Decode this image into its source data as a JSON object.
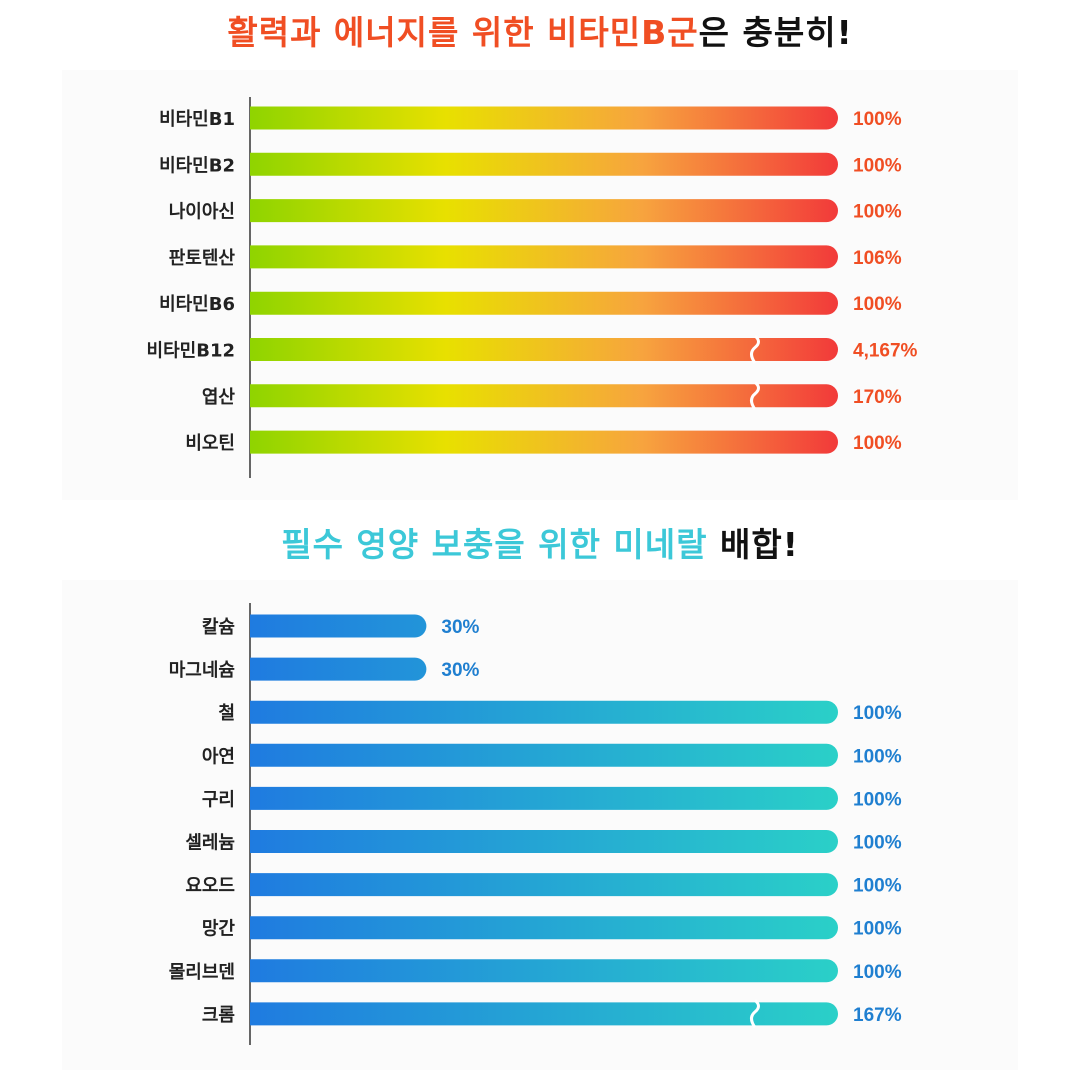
{
  "headline1": {
    "accent": "활력과 에너지를 위한 비타민B군",
    "rest": "은 충분히!",
    "accent_color": "#f04e23",
    "rest_color": "#111111"
  },
  "headline2": {
    "accent": "필수 영양 보충을 위한 미네랄",
    "rest": " 배합!",
    "accent_color": "#3cc8d8",
    "rest_color": "#111111"
  },
  "chart_data": [
    {
      "type": "bar",
      "orientation": "horizontal",
      "categories": [
        "비타민B1",
        "비타민B2",
        "나이아신",
        "판토텐산",
        "비타민B6",
        "비타민B12",
        "엽산",
        "비오틴"
      ],
      "values": [
        100,
        100,
        100,
        106,
        100,
        4167,
        170,
        100
      ],
      "value_labels": [
        "100%",
        "100%",
        "100%",
        "106%",
        "100%",
        "4,167%",
        "170%",
        "100%"
      ],
      "broken_axis": [
        false,
        false,
        false,
        false,
        false,
        true,
        true,
        false
      ],
      "gradient": [
        "#8fd400",
        "#e8e000",
        "#f7a43e",
        "#f23a3a"
      ],
      "value_color": "#f04e23",
      "grid": false
    },
    {
      "type": "bar",
      "orientation": "horizontal",
      "categories": [
        "칼슘",
        "마그네슘",
        "철",
        "아연",
        "구리",
        "셀레늄",
        "요오드",
        "망간",
        "몰리브덴",
        "크롬"
      ],
      "values": [
        30,
        30,
        100,
        100,
        100,
        100,
        100,
        100,
        100,
        167
      ],
      "value_labels": [
        "30%",
        "30%",
        "100%",
        "100%",
        "100%",
        "100%",
        "100%",
        "100%",
        "100%",
        "167%"
      ],
      "broken_axis": [
        false,
        false,
        false,
        false,
        false,
        false,
        false,
        false,
        false,
        true
      ],
      "gradient": [
        "#1f7be0",
        "#2ad0c8"
      ],
      "value_color": "#1f7fd0",
      "grid": false
    }
  ]
}
